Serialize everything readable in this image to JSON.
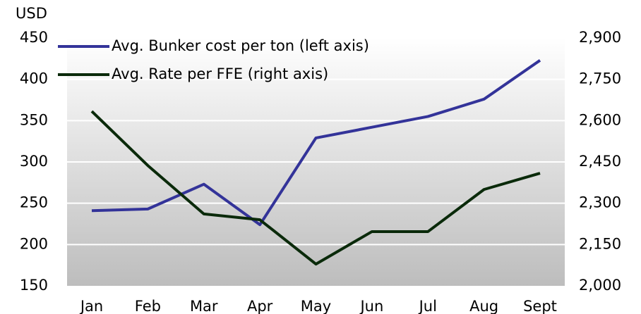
{
  "chart_data": {
    "type": "line",
    "y_axis_unit": "USD",
    "categories": [
      "Jan",
      "Feb",
      "Mar",
      "Apr",
      "May",
      "Jun",
      "Jul",
      "Aug",
      "Sept"
    ],
    "series": [
      {
        "name": "Avg. Bunker cost per ton (left axis)",
        "color": "#333399",
        "values": [
          241,
          243,
          273,
          224,
          329,
          342,
          355,
          376,
          423
        ]
      },
      {
        "name": "Avg. Rate per FFE (right axis)",
        "color": "#0a2a0a",
        "axis": "y2",
        "values": [
          2634,
          2437,
          2261,
          2240,
          2079,
          2197,
          2197,
          2350,
          2409
        ]
      }
    ],
    "ylim": [
      150,
      450
    ],
    "yticks": [
      150,
      200,
      250,
      300,
      350,
      400,
      450
    ],
    "y2lim": [
      2000,
      2900
    ],
    "y2ticks": [
      {
        "value": 2000,
        "label": "2,000"
      },
      {
        "value": 2150,
        "label": "2,150"
      },
      {
        "value": 2300,
        "label": "2,300"
      },
      {
        "value": 2450,
        "label": "2,450"
      },
      {
        "value": 2600,
        "label": "2,600"
      },
      {
        "value": 2750,
        "label": "2,750"
      },
      {
        "value": 2900,
        "label": "2,900"
      }
    ],
    "grid": true,
    "legend": "top-left"
  }
}
